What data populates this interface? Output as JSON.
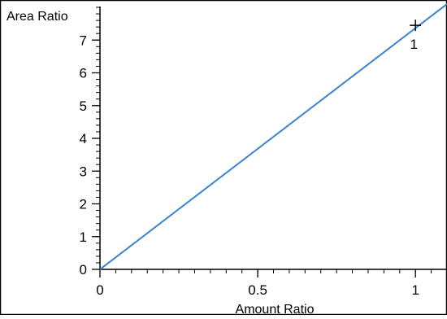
{
  "chart_data": {
    "type": "line",
    "title": "",
    "xlabel": "Amount Ratio",
    "ylabel": "Area Ratio",
    "xlim": [
      0,
      1.1
    ],
    "ylim": [
      0,
      8
    ],
    "x_ticks": [
      {
        "value": 0,
        "label": "0"
      },
      {
        "value": 0.5,
        "label": "0.5"
      },
      {
        "value": 1,
        "label": "1"
      }
    ],
    "y_ticks": [
      {
        "value": 0,
        "label": "0"
      },
      {
        "value": 1,
        "label": "1"
      },
      {
        "value": 2,
        "label": "2"
      },
      {
        "value": 3,
        "label": "3"
      },
      {
        "value": 4,
        "label": "4"
      },
      {
        "value": 5,
        "label": "5"
      },
      {
        "value": 6,
        "label": "6"
      },
      {
        "value": 7,
        "label": "7"
      }
    ],
    "x_minor_step": 0.05,
    "y_minor_step": 0.2,
    "grid": false,
    "legend": "none",
    "series": [
      {
        "x": [
          0,
          1.1
        ],
        "y": [
          0,
          8.1
        ],
        "color": "#3a83d0"
      }
    ],
    "points": [
      {
        "x": 1,
        "y": 7.45,
        "marker": "plus",
        "label": "1"
      }
    ]
  }
}
